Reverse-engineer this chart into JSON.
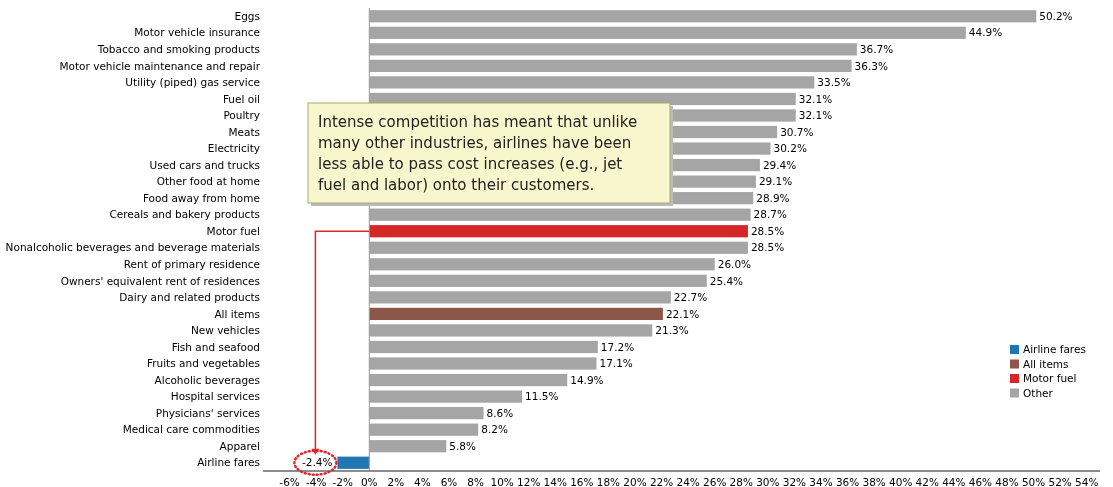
{
  "chart_data": {
    "type": "bar",
    "orientation": "horizontal",
    "categories": [
      "Eggs",
      "Motor vehicle insurance",
      "Tobacco and smoking products",
      "Motor vehicle maintenance and repair",
      "Utility (piped) gas service",
      "Fuel oil",
      "Poultry",
      "Meats",
      "Electricity",
      "Used cars and trucks",
      "Other food at home",
      "Food away from home",
      "Cereals and bakery products",
      "Motor fuel",
      "Nonalcoholic beverages and beverage materials",
      "Rent of primary residence",
      "Owners' equivalent rent of residences",
      "Dairy and related products",
      "All items",
      "New vehicles",
      "Fish and seafood",
      "Fruits and vegetables",
      "Alcoholic beverages",
      "Hospital services",
      "Physicians' services",
      "Medical care commodities",
      "Apparel",
      "Airline fares"
    ],
    "series": [
      {
        "name": "Airline fares",
        "color": "#1f77b4",
        "values": [
          null,
          null,
          null,
          null,
          null,
          null,
          null,
          null,
          null,
          null,
          null,
          null,
          null,
          null,
          null,
          null,
          null,
          null,
          null,
          null,
          null,
          null,
          null,
          null,
          null,
          null,
          null,
          -2.4
        ],
        "value_labels": [
          null,
          null,
          null,
          null,
          null,
          null,
          null,
          null,
          null,
          null,
          null,
          null,
          null,
          null,
          null,
          null,
          null,
          null,
          null,
          null,
          null,
          null,
          null,
          null,
          null,
          null,
          null,
          "-2.4%"
        ]
      },
      {
        "name": "All items",
        "color": "#8c564b",
        "values": [
          null,
          null,
          null,
          null,
          null,
          null,
          null,
          null,
          null,
          null,
          null,
          null,
          null,
          null,
          null,
          null,
          null,
          null,
          22.1,
          null,
          null,
          null,
          null,
          null,
          null,
          null,
          null,
          null
        ],
        "value_labels": [
          null,
          null,
          null,
          null,
          null,
          null,
          null,
          null,
          null,
          null,
          null,
          null,
          null,
          null,
          null,
          null,
          null,
          null,
          "22.1%",
          null,
          null,
          null,
          null,
          null,
          null,
          null,
          null,
          null
        ]
      },
      {
        "name": "Motor fuel",
        "color": "#d62728",
        "values": [
          null,
          null,
          null,
          null,
          null,
          null,
          null,
          null,
          null,
          null,
          null,
          null,
          null,
          28.5,
          null,
          null,
          null,
          null,
          null,
          null,
          null,
          null,
          null,
          null,
          null,
          null,
          null,
          null
        ],
        "value_labels": [
          null,
          null,
          null,
          null,
          null,
          null,
          null,
          null,
          null,
          null,
          null,
          null,
          null,
          "28.5%",
          null,
          null,
          null,
          null,
          null,
          null,
          null,
          null,
          null,
          null,
          null,
          null,
          null,
          null
        ]
      },
      {
        "name": "Other",
        "color": "#a5a5a5",
        "values": [
          50.2,
          44.9,
          36.7,
          36.3,
          33.5,
          32.1,
          32.1,
          30.7,
          30.2,
          29.4,
          29.1,
          28.9,
          28.7,
          null,
          28.5,
          26.0,
          25.4,
          22.7,
          null,
          21.3,
          17.2,
          17.1,
          14.9,
          11.5,
          8.6,
          8.2,
          5.8,
          null
        ],
        "value_labels": [
          "50.2%",
          "44.9%",
          "36.7%",
          "36.3%",
          "33.5%",
          "32.1%",
          "32.1%",
          "30.7%",
          "30.2%",
          "29.4%",
          "29.1%",
          "28.9%",
          "28.7%",
          null,
          "28.5%",
          "26.0%",
          "25.4%",
          "22.7%",
          null,
          "21.3%",
          "17.2%",
          "17.1%",
          "14.9%",
          "11.5%",
          "8.6%",
          "8.2%",
          "5.8%",
          null
        ]
      }
    ],
    "xlim": [
      -8,
      55
    ],
    "xticks": [
      {
        "value": -6,
        "label": "-6%"
      },
      {
        "value": -4,
        "label": "-4%"
      },
      {
        "value": -2,
        "label": "-2%"
      },
      {
        "value": 0,
        "label": "0%"
      },
      {
        "value": 2,
        "label": "2%"
      },
      {
        "value": 4,
        "label": "4%"
      },
      {
        "value": 6,
        "label": "6%"
      },
      {
        "value": 8,
        "label": "8%"
      },
      {
        "value": 10,
        "label": "10%"
      },
      {
        "value": 12,
        "label": "12%"
      },
      {
        "value": 14,
        "label": "14%"
      },
      {
        "value": 16,
        "label": "16%"
      },
      {
        "value": 18,
        "label": "18%"
      },
      {
        "value": 20,
        "label": "20%"
      },
      {
        "value": 22,
        "label": "22%"
      },
      {
        "value": 24,
        "label": "24%"
      },
      {
        "value": 26,
        "label": "26%"
      },
      {
        "value": 28,
        "label": "28%"
      },
      {
        "value": 30,
        "label": "30%"
      },
      {
        "value": 32,
        "label": "32%"
      },
      {
        "value": 34,
        "label": "34%"
      },
      {
        "value": 36,
        "label": "36%"
      },
      {
        "value": 38,
        "label": "38%"
      },
      {
        "value": 40,
        "label": "40%"
      },
      {
        "value": 42,
        "label": "42%"
      },
      {
        "value": 44,
        "label": "44%"
      },
      {
        "value": 46,
        "label": "46%"
      },
      {
        "value": 48,
        "label": "48%"
      },
      {
        "value": 50,
        "label": "50%"
      },
      {
        "value": 52,
        "label": "52%"
      },
      {
        "value": 54,
        "label": "54%"
      }
    ],
    "annotations": [
      "Intense competition has meant that unlike many other industries, airlines have been less able to pass cost increases (e.g., jet fuel and labor) onto their customers."
    ],
    "ref_lines": [
      {
        "axis": "x",
        "value": 0,
        "color": "#999999"
      }
    ],
    "legend": "bottom right",
    "grid": false
  }
}
